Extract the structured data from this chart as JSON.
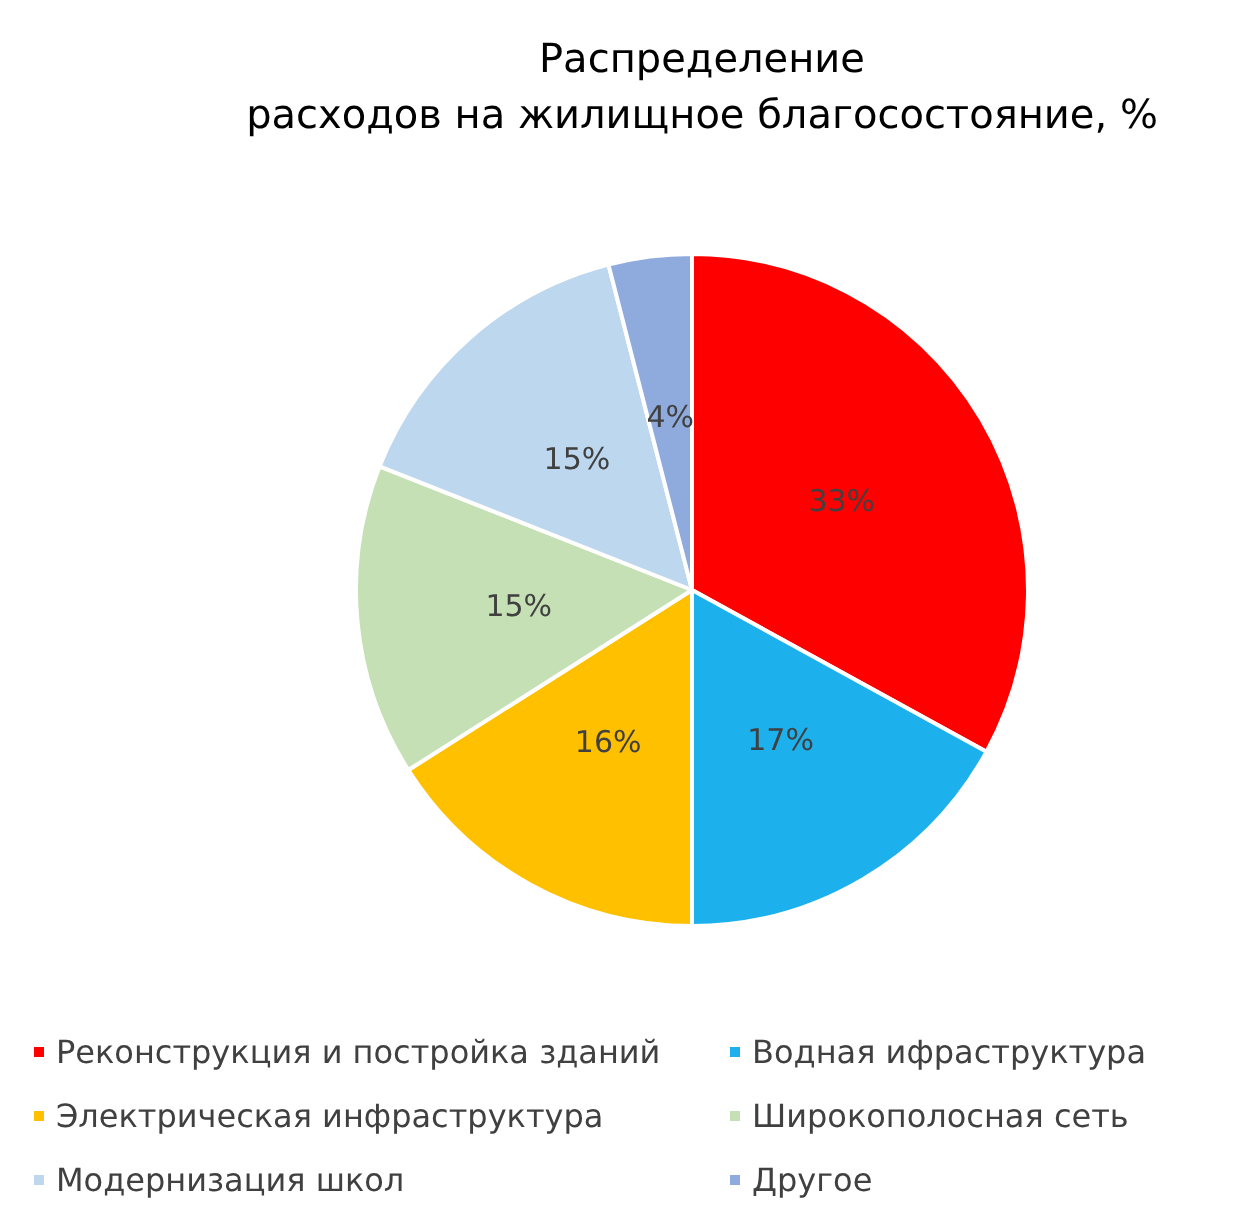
{
  "chart_data": {
    "type": "pie",
    "title": "Распределение\nрасходов на жилищное благосостояние, %",
    "categories": [
      "Реконструкция и постройка зданий",
      "Водная ифраструктура",
      "Электрическая инфраструктура",
      "Широкополосная сеть",
      "Модернизация школ",
      "Другое"
    ],
    "values": [
      33,
      17,
      16,
      15,
      15,
      4
    ],
    "value_labels": [
      "33%",
      "17%",
      "16%",
      "15%",
      "15%",
      "4%"
    ],
    "colors": [
      "#ff0000",
      "#1cb0ec",
      "#ffc000",
      "#c5e0b4",
      "#bdd7ee",
      "#8faadc"
    ],
    "legend": "bottom"
  }
}
